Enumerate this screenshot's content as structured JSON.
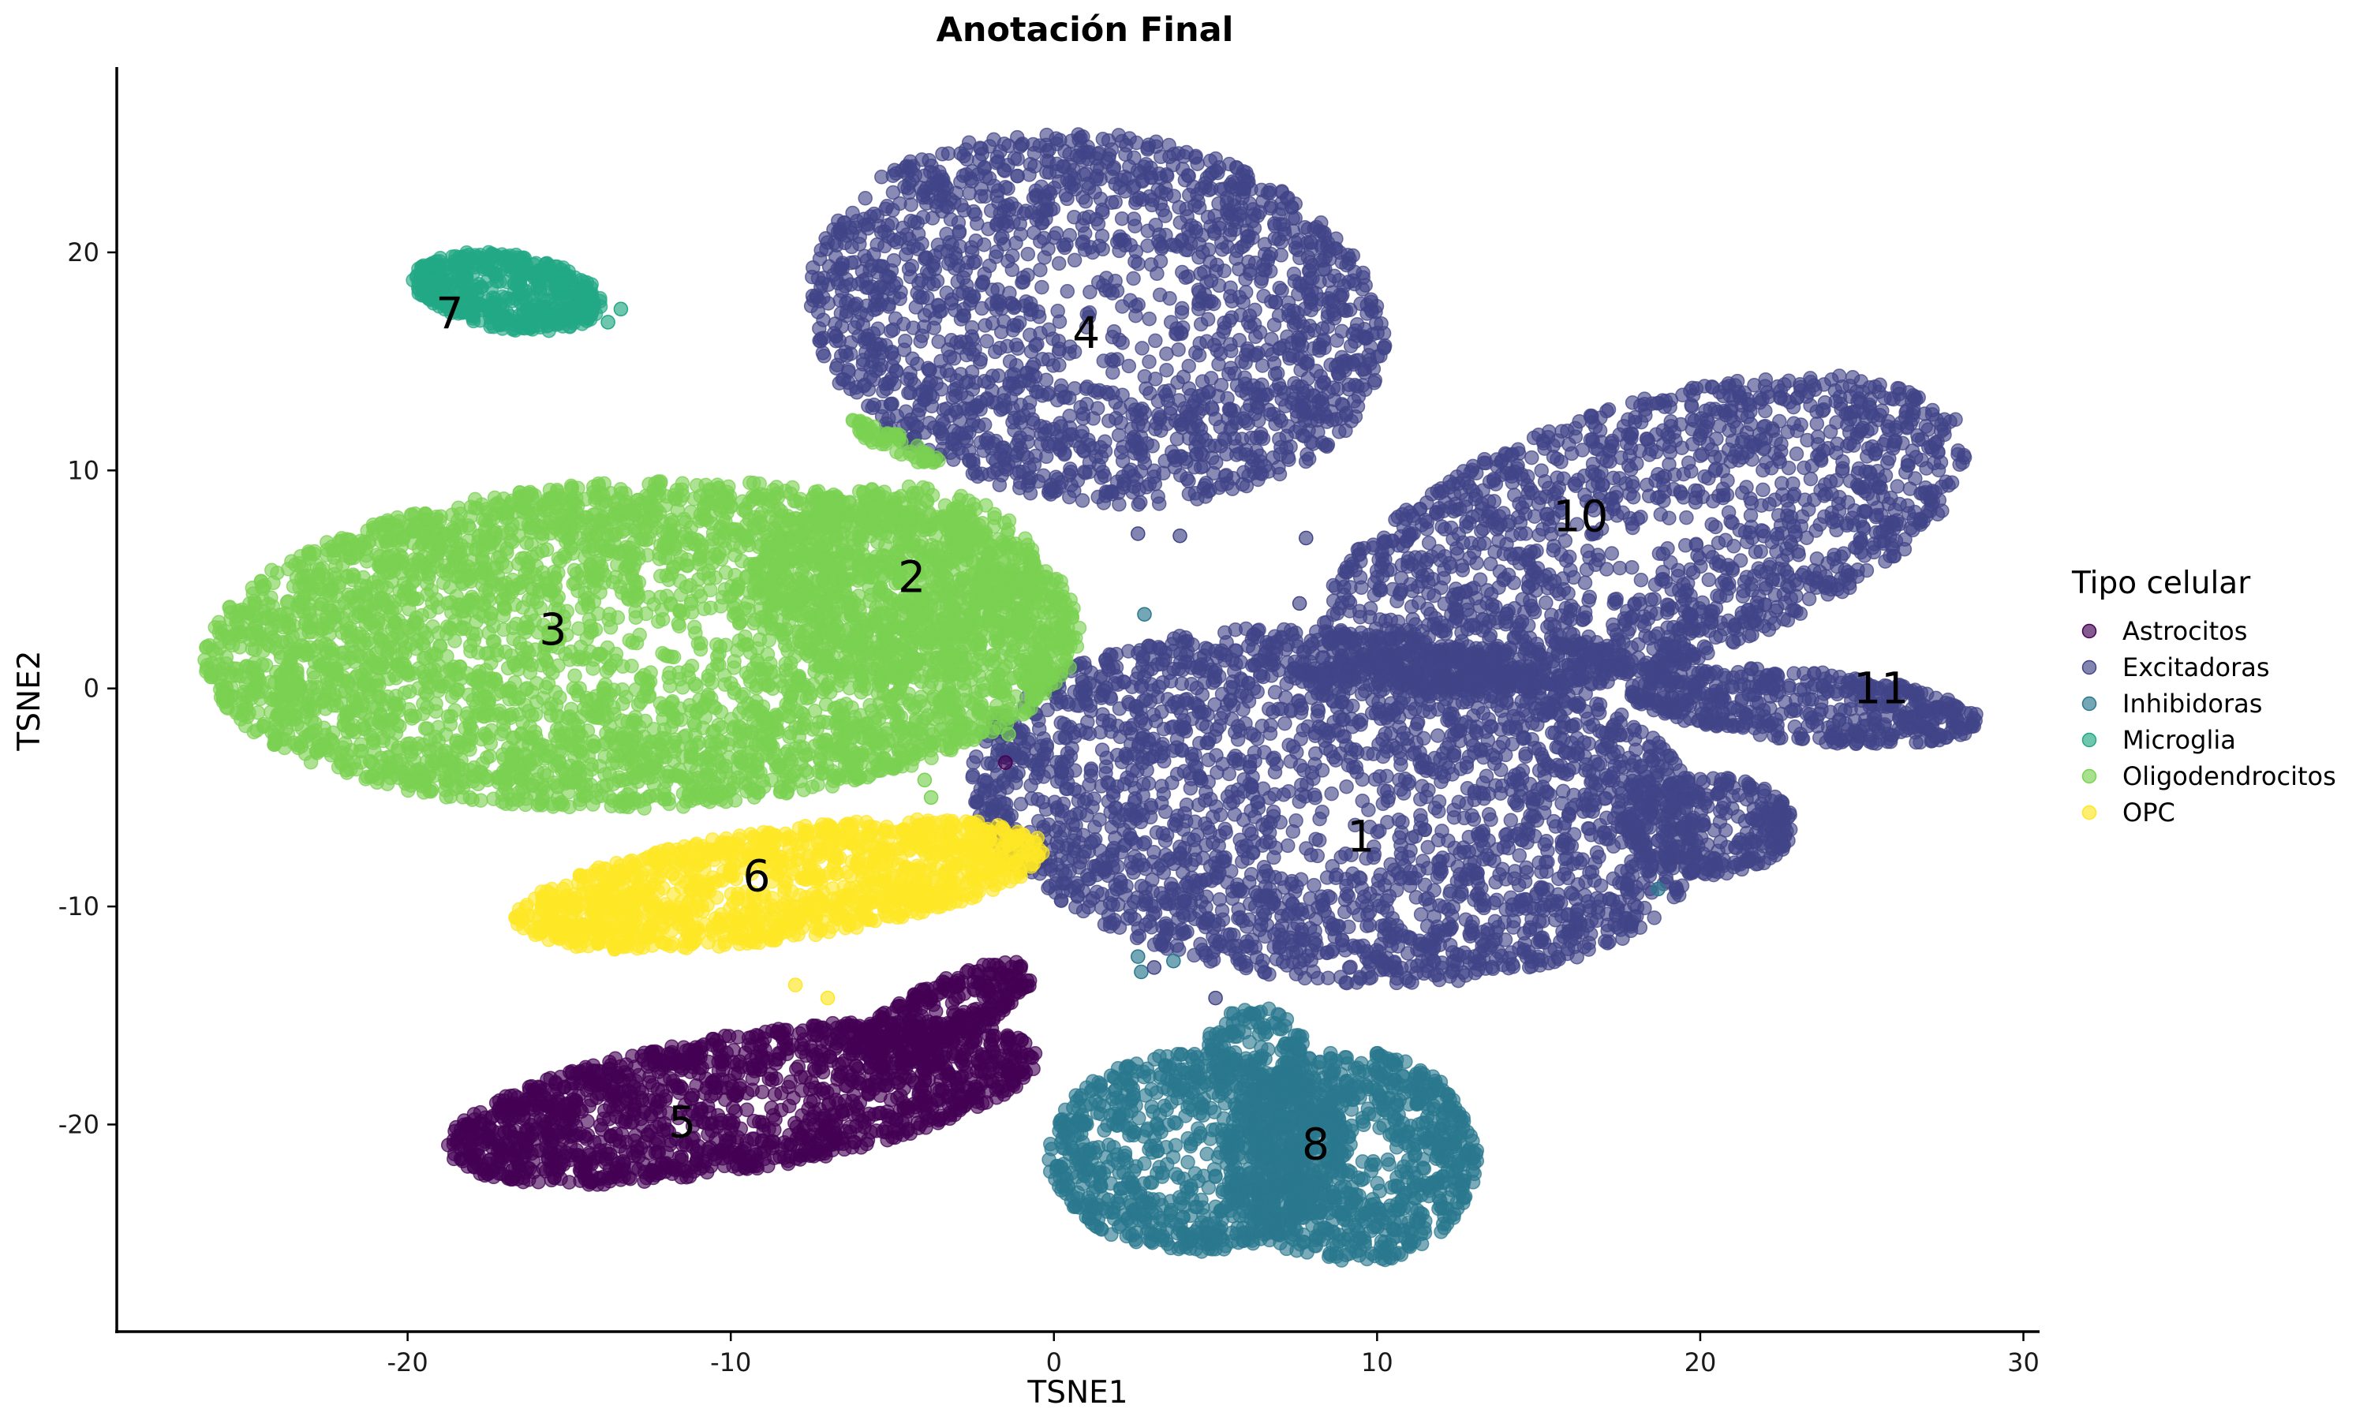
{
  "chart_data": {
    "type": "scatter",
    "title": "Anotación Final",
    "xlabel": "TSNE1",
    "ylabel": "TSNE2",
    "xlim": [
      -29,
      30.5
    ],
    "ylim": [
      -29.5,
      28.5
    ],
    "xticks": [
      -20,
      -10,
      0,
      10,
      20,
      30
    ],
    "yticks": [
      -20,
      -10,
      0,
      10,
      20
    ],
    "xtick_labels": [
      "-20",
      "-10",
      "0",
      "10",
      "20",
      "30"
    ],
    "ytick_labels": [
      "-20",
      "-10",
      "0",
      "10",
      "20"
    ],
    "grid": false,
    "legend": {
      "title": "Tipo celular",
      "position": "right",
      "entries": [
        {
          "label": "Astrocitos",
          "color": "#440154"
        },
        {
          "label": "Excitadoras",
          "color": "#414487"
        },
        {
          "label": "Inhibidoras",
          "color": "#2a788e"
        },
        {
          "label": "Microglia",
          "color": "#22a884"
        },
        {
          "label": "Oligodendrocitos",
          "color": "#7ad151"
        },
        {
          "label": "OPC",
          "color": "#fde725"
        }
      ]
    },
    "cluster_labels": [
      {
        "label": "1",
        "x": 9.5,
        "y": -6.8
      },
      {
        "label": "2",
        "x": -4.4,
        "y": 5.1
      },
      {
        "label": "3",
        "x": -15.5,
        "y": 2.7
      },
      {
        "label": "4",
        "x": 1.0,
        "y": 16.3
      },
      {
        "label": "5",
        "x": -11.5,
        "y": -19.9
      },
      {
        "label": "6",
        "x": -9.2,
        "y": -8.6
      },
      {
        "label": "7",
        "x": -18.7,
        "y": 17.2
      },
      {
        "label": "8",
        "x": 8.1,
        "y": -20.9
      },
      {
        "label": "10",
        "x": 16.3,
        "y": 7.9
      },
      {
        "label": "11",
        "x": 25.6,
        "y": 0.0
      }
    ],
    "clusters": [
      {
        "cell_type": "Excitadoras",
        "label": "4",
        "cx": 1.3,
        "cy": 17.0,
        "rx": 9.3,
        "ry": 8.2,
        "rot": -35,
        "n": 1900
      },
      {
        "cell_type": "Excitadoras",
        "label": "10",
        "cx": 18.3,
        "cy": 7.0,
        "rx": 11.0,
        "ry": 5.7,
        "rot": 30,
        "n": 1600
      },
      {
        "cell_type": "Excitadoras",
        "label": "11",
        "cx": 23.2,
        "cy": -0.8,
        "rx": 5.5,
        "ry": 1.6,
        "rot": -8,
        "n": 500
      },
      {
        "cell_type": "Excitadoras",
        "label": "1",
        "cx": 8.8,
        "cy": -5.4,
        "rx": 11.5,
        "ry": 8.0,
        "rot": -12,
        "n": 2600
      },
      {
        "cell_type": "Excitadoras",
        "label": "",
        "cx": 20.3,
        "cy": -6.3,
        "rx": 2.6,
        "ry": 2.3,
        "rot": 0,
        "n": 300
      },
      {
        "cell_type": "Excitadoras",
        "label": "",
        "cx": 13.6,
        "cy": 1.0,
        "rx": 6.5,
        "ry": 1.0,
        "rot": 5,
        "n": 300
      },
      {
        "cell_type": "Oligodendrocitos",
        "label": "3",
        "cx": -12.7,
        "cy": 2.0,
        "rx": 13.6,
        "ry": 7.5,
        "rot": 4,
        "n": 4200
      },
      {
        "cell_type": "Oligodendrocitos",
        "label": "2",
        "cx": -4.8,
        "cy": 4.8,
        "rx": 4.5,
        "ry": 4.5,
        "rot": 0,
        "n": 600
      },
      {
        "cell_type": "Oligodendrocitos",
        "label": "",
        "cx": -5.0,
        "cy": 11.3,
        "rx": 1.8,
        "ry": 0.4,
        "rot": -35,
        "n": 60
      },
      {
        "cell_type": "Microglia",
        "label": "7",
        "cx": -16.9,
        "cy": 18.2,
        "rx": 3.0,
        "ry": 1.7,
        "rot": -15,
        "n": 500
      },
      {
        "cell_type": "OPC",
        "label": "6",
        "cx": -8.5,
        "cy": -9.0,
        "rx": 8.4,
        "ry": 2.5,
        "rot": 12,
        "n": 1300
      },
      {
        "cell_type": "Astrocitos",
        "label": "5",
        "cx": -9.7,
        "cy": -19.0,
        "rx": 9.4,
        "ry": 3.1,
        "rot": 14,
        "n": 1500
      },
      {
        "cell_type": "Astrocitos",
        "label": "",
        "cx": -3.5,
        "cy": -15.0,
        "rx": 3.6,
        "ry": 1.3,
        "rot": 40,
        "n": 300
      },
      {
        "cell_type": "Inhibidoras",
        "label": "8",
        "cx": 4.5,
        "cy": -21.3,
        "rx": 4.7,
        "ry": 4.6,
        "rot": 0,
        "n": 900
      },
      {
        "cell_type": "Inhibidoras",
        "label": "",
        "cx": 9.2,
        "cy": -21.5,
        "rx": 3.9,
        "ry": 4.9,
        "rot": 0,
        "n": 900
      },
      {
        "cell_type": "Inhibidoras",
        "label": "",
        "cx": 6.2,
        "cy": -16.8,
        "rx": 1.6,
        "ry": 2.2,
        "rot": 0,
        "n": 150
      }
    ],
    "outliers": [
      {
        "cell_type": "Microglia",
        "x": -13.4,
        "y": 17.4
      },
      {
        "cell_type": "Microglia",
        "x": -13.8,
        "y": 16.8
      },
      {
        "cell_type": "Microglia",
        "x": -14.8,
        "y": 17.0
      },
      {
        "cell_type": "Inhibidoras",
        "x": 2.8,
        "y": 3.4
      },
      {
        "cell_type": "Inhibidoras",
        "x": 2.6,
        "y": -12.3
      },
      {
        "cell_type": "Inhibidoras",
        "x": 2.7,
        "y": -13.0
      },
      {
        "cell_type": "Inhibidoras",
        "x": 3.7,
        "y": -12.5
      },
      {
        "cell_type": "Inhibidoras",
        "x": 18.7,
        "y": -9.2
      },
      {
        "cell_type": "Astrocitos",
        "x": -1.5,
        "y": -3.4
      },
      {
        "cell_type": "Oligodendrocitos",
        "x": -1.4,
        "y": -2.1
      },
      {
        "cell_type": "Oligodendrocitos",
        "x": -4.0,
        "y": -4.2
      },
      {
        "cell_type": "Oligodendrocitos",
        "x": -3.8,
        "y": -5.0
      },
      {
        "cell_type": "OPC",
        "x": -7.0,
        "y": -14.2
      },
      {
        "cell_type": "OPC",
        "x": -8.0,
        "y": -13.6
      },
      {
        "cell_type": "OPC",
        "x": -3.2,
        "y": -6.5
      },
      {
        "cell_type": "Excitadoras",
        "x": 2.6,
        "y": 7.1
      },
      {
        "cell_type": "Excitadoras",
        "x": 3.9,
        "y": 7.0
      },
      {
        "cell_type": "Excitadoras",
        "x": 7.8,
        "y": 6.9
      },
      {
        "cell_type": "Excitadoras",
        "x": 7.6,
        "y": 3.9
      },
      {
        "cell_type": "Excitadoras",
        "x": 9.0,
        "y": 2.5
      },
      {
        "cell_type": "Excitadoras",
        "x": 3.1,
        "y": -12.8
      },
      {
        "cell_type": "Excitadoras",
        "x": 5.0,
        "y": -14.2
      }
    ]
  }
}
